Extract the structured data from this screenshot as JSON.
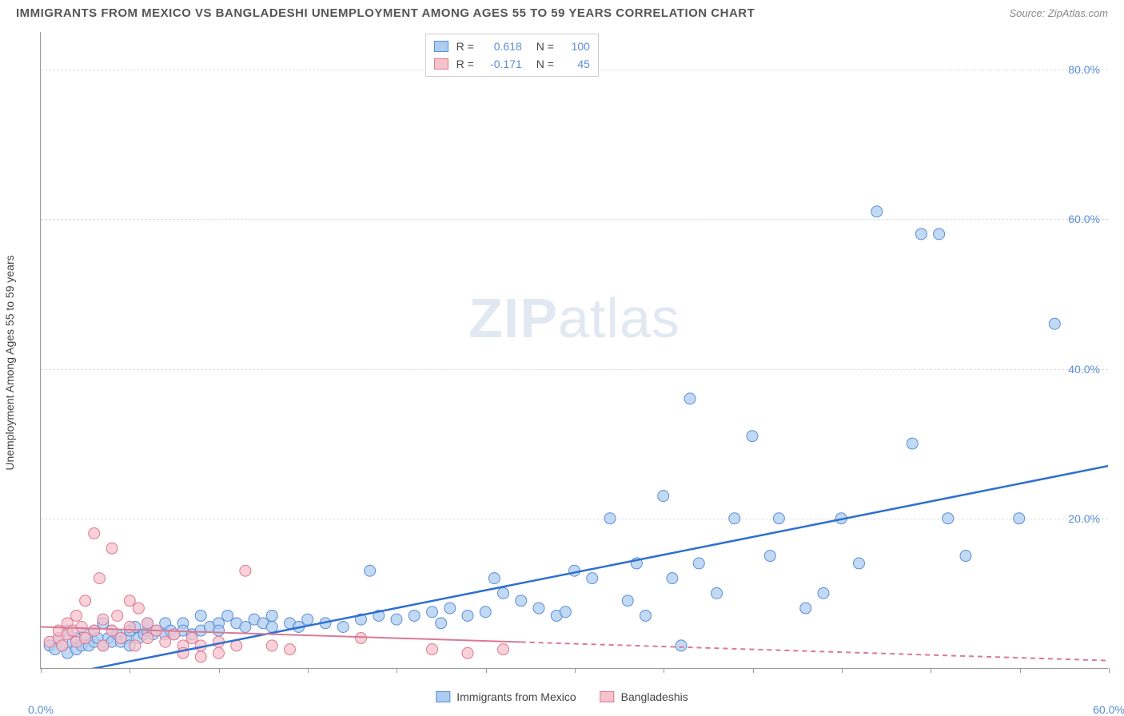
{
  "title": "IMMIGRANTS FROM MEXICO VS BANGLADESHI UNEMPLOYMENT AMONG AGES 55 TO 59 YEARS CORRELATION CHART",
  "source": "Source: ZipAtlas.com",
  "watermark_left": "ZIP",
  "watermark_right": "atlas",
  "y_axis_title": "Unemployment Among Ages 55 to 59 years",
  "chart": {
    "type": "scatter",
    "xlim": [
      0,
      60
    ],
    "ylim": [
      0,
      85
    ],
    "x_ticks": [
      0,
      5,
      10,
      15,
      20,
      25,
      30,
      35,
      40,
      45,
      50,
      55,
      60
    ],
    "x_tick_labels": {
      "0": "0.0%",
      "60": "60.0%"
    },
    "y_ticks": [
      20,
      40,
      60,
      80
    ],
    "y_tick_labels": [
      "20.0%",
      "40.0%",
      "60.0%",
      "80.0%"
    ],
    "grid_color": "#dddddd",
    "background_color": "#ffffff",
    "series": [
      {
        "name": "Immigrants from Mexico",
        "color_fill": "#aeccf0",
        "color_stroke": "#5b8dd6",
        "marker_radius": 7,
        "R": "0.618",
        "N": "100",
        "trend": {
          "x1": 1,
          "y1": -1,
          "x2": 60,
          "y2": 27,
          "color": "#2f6fd0",
          "width": 2.5,
          "dash_after_x": null
        },
        "points": [
          [
            0.5,
            3
          ],
          [
            0.8,
            2.5
          ],
          [
            1,
            4
          ],
          [
            1.2,
            3
          ],
          [
            1.5,
            2
          ],
          [
            1.5,
            5
          ],
          [
            1.8,
            3.5
          ],
          [
            2,
            4
          ],
          [
            2,
            2.5
          ],
          [
            2.3,
            3
          ],
          [
            2.5,
            4.5
          ],
          [
            2.7,
            3
          ],
          [
            3,
            5
          ],
          [
            3,
            3.5
          ],
          [
            3.2,
            4
          ],
          [
            3.5,
            3
          ],
          [
            3.5,
            6
          ],
          [
            3.8,
            4
          ],
          [
            4,
            5
          ],
          [
            4,
            3.5
          ],
          [
            4.3,
            4.5
          ],
          [
            4.5,
            3.5
          ],
          [
            4.8,
            4
          ],
          [
            5,
            5
          ],
          [
            5,
            3
          ],
          [
            5.3,
            5.5
          ],
          [
            5.5,
            4
          ],
          [
            5.8,
            4.5
          ],
          [
            6,
            5
          ],
          [
            6,
            6
          ],
          [
            6.3,
            4.5
          ],
          [
            6.5,
            5
          ],
          [
            7,
            4.5
          ],
          [
            7,
            6
          ],
          [
            7.3,
            5
          ],
          [
            7.5,
            4.5
          ],
          [
            8,
            6
          ],
          [
            8,
            5
          ],
          [
            8.5,
            4.5
          ],
          [
            9,
            5
          ],
          [
            9,
            7
          ],
          [
            9.5,
            5.5
          ],
          [
            10,
            6
          ],
          [
            10,
            5
          ],
          [
            10.5,
            7
          ],
          [
            11,
            6
          ],
          [
            11.5,
            5.5
          ],
          [
            12,
            6.5
          ],
          [
            12.5,
            6
          ],
          [
            13,
            5.5
          ],
          [
            13,
            7
          ],
          [
            14,
            6
          ],
          [
            14.5,
            5.5
          ],
          [
            15,
            6.5
          ],
          [
            16,
            6
          ],
          [
            17,
            5.5
          ],
          [
            18,
            6.5
          ],
          [
            18.5,
            13
          ],
          [
            19,
            7
          ],
          [
            20,
            6.5
          ],
          [
            21,
            7
          ],
          [
            22,
            7.5
          ],
          [
            22.5,
            6
          ],
          [
            23,
            8
          ],
          [
            24,
            7
          ],
          [
            25,
            7.5
          ],
          [
            25.5,
            12
          ],
          [
            26,
            10
          ],
          [
            27,
            9
          ],
          [
            28,
            8
          ],
          [
            29,
            7
          ],
          [
            29.5,
            7.5
          ],
          [
            30,
            13
          ],
          [
            31,
            12
          ],
          [
            32,
            20
          ],
          [
            33,
            9
          ],
          [
            33.5,
            14
          ],
          [
            34,
            7
          ],
          [
            35,
            23
          ],
          [
            35.5,
            12
          ],
          [
            36,
            3
          ],
          [
            36.5,
            36
          ],
          [
            37,
            14
          ],
          [
            38,
            10
          ],
          [
            39,
            20
          ],
          [
            40,
            31
          ],
          [
            41,
            15
          ],
          [
            41.5,
            20
          ],
          [
            43,
            8
          ],
          [
            44,
            10
          ],
          [
            45,
            20
          ],
          [
            46,
            14
          ],
          [
            47,
            61
          ],
          [
            49,
            30
          ],
          [
            49.5,
            58
          ],
          [
            50.5,
            58
          ],
          [
            51,
            20
          ],
          [
            52,
            15
          ],
          [
            55,
            20
          ],
          [
            57,
            46
          ]
        ]
      },
      {
        "name": "Bangladeshis",
        "color_fill": "#f6c2cc",
        "color_stroke": "#d97a94",
        "marker_radius": 7,
        "R": "-0.171",
        "N": "45",
        "trend": {
          "x1": 0,
          "y1": 5.5,
          "x2": 60,
          "y2": 1,
          "color": "#d97a94",
          "width": 2,
          "dash_after_x": 27
        },
        "points": [
          [
            0.5,
            3.5
          ],
          [
            1,
            4
          ],
          [
            1,
            5
          ],
          [
            1.2,
            3
          ],
          [
            1.5,
            4.5
          ],
          [
            1.5,
            6
          ],
          [
            1.8,
            5
          ],
          [
            2,
            3.5
          ],
          [
            2,
            7
          ],
          [
            2.3,
            5.5
          ],
          [
            2.5,
            4
          ],
          [
            2.5,
            9
          ],
          [
            3,
            18
          ],
          [
            3,
            5
          ],
          [
            3.3,
            12
          ],
          [
            3.5,
            6.5
          ],
          [
            3.5,
            3
          ],
          [
            4,
            16
          ],
          [
            4,
            5
          ],
          [
            4.3,
            7
          ],
          [
            4.5,
            4
          ],
          [
            5,
            9
          ],
          [
            5,
            5.5
          ],
          [
            5.3,
            3
          ],
          [
            5.5,
            8
          ],
          [
            6,
            6
          ],
          [
            6,
            4
          ],
          [
            6.5,
            5
          ],
          [
            7,
            3.5
          ],
          [
            7.5,
            4.5
          ],
          [
            8,
            3
          ],
          [
            8,
            2
          ],
          [
            8.5,
            4
          ],
          [
            9,
            3
          ],
          [
            9,
            1.5
          ],
          [
            10,
            3.5
          ],
          [
            10,
            2
          ],
          [
            11,
            3
          ],
          [
            11.5,
            13
          ],
          [
            13,
            3
          ],
          [
            14,
            2.5
          ],
          [
            18,
            4
          ],
          [
            22,
            2.5
          ],
          [
            24,
            2
          ],
          [
            26,
            2.5
          ]
        ]
      }
    ]
  },
  "legend_top": {
    "rows": [
      {
        "swatch_fill": "#aeccf0",
        "swatch_stroke": "#5b8dd6",
        "R_label": "R =",
        "R_val": "0.618",
        "N_label": "N =",
        "N_val": "100"
      },
      {
        "swatch_fill": "#f6c2cc",
        "swatch_stroke": "#d97a94",
        "R_label": "R =",
        "R_val": "-0.171",
        "N_label": "N =",
        "N_val": "45"
      }
    ]
  },
  "legend_bottom": {
    "items": [
      {
        "swatch_fill": "#aeccf0",
        "swatch_stroke": "#5b8dd6",
        "label": "Immigrants from Mexico"
      },
      {
        "swatch_fill": "#f6c2cc",
        "swatch_stroke": "#d97a94",
        "label": "Bangladeshis"
      }
    ]
  }
}
